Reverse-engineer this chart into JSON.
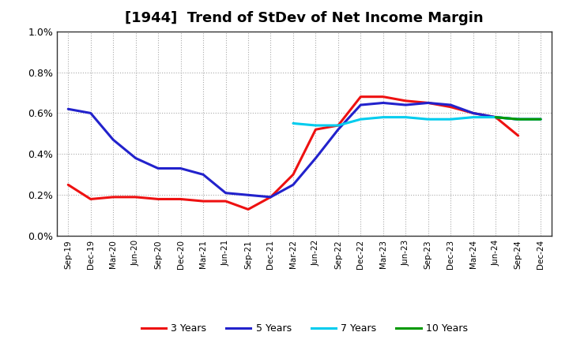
{
  "title": "[1944]  Trend of StDev of Net Income Margin",
  "x_labels": [
    "Sep-19",
    "Dec-19",
    "Mar-20",
    "Jun-20",
    "Sep-20",
    "Dec-20",
    "Mar-21",
    "Jun-21",
    "Sep-21",
    "Dec-21",
    "Mar-22",
    "Jun-22",
    "Sep-22",
    "Dec-22",
    "Mar-23",
    "Jun-23",
    "Sep-23",
    "Dec-23",
    "Mar-24",
    "Jun-24",
    "Sep-24",
    "Dec-24"
  ],
  "series": {
    "3 Years": {
      "color": "#EE1111",
      "values": [
        0.0025,
        0.0018,
        0.0019,
        0.0019,
        0.0018,
        0.0018,
        0.0017,
        0.0017,
        0.0013,
        0.0019,
        0.003,
        0.0052,
        0.0054,
        0.0068,
        0.0068,
        0.0066,
        0.0065,
        0.0063,
        0.006,
        0.0058,
        0.0049,
        null
      ]
    },
    "5 Years": {
      "color": "#2222CC",
      "values": [
        0.0062,
        0.006,
        0.0047,
        0.0038,
        0.0033,
        0.0033,
        0.003,
        0.0021,
        0.002,
        0.0019,
        0.0025,
        0.0038,
        0.0052,
        0.0064,
        0.0065,
        0.0064,
        0.0065,
        0.0064,
        0.006,
        0.0058,
        0.0057,
        0.0057
      ]
    },
    "7 Years": {
      "color": "#00CCEE",
      "values": [
        null,
        null,
        null,
        null,
        null,
        null,
        null,
        null,
        null,
        null,
        0.0055,
        0.0054,
        0.0054,
        0.0057,
        0.0058,
        0.0058,
        0.0057,
        0.0057,
        0.0058,
        0.0058,
        0.0057,
        0.0057
      ]
    },
    "10 Years": {
      "color": "#009900",
      "values": [
        null,
        null,
        null,
        null,
        null,
        null,
        null,
        null,
        null,
        null,
        null,
        null,
        null,
        null,
        null,
        null,
        null,
        null,
        null,
        0.0058,
        0.0057,
        0.0057
      ]
    }
  },
  "ylim": [
    0.0,
    0.01
  ],
  "yticks": [
    0.0,
    0.002,
    0.004,
    0.006,
    0.008,
    0.01
  ],
  "ytick_labels": [
    "0.0%",
    "0.2%",
    "0.4%",
    "0.6%",
    "0.8%",
    "1.0%"
  ],
  "background_color": "#FFFFFF",
  "plot_bg_color": "#FFFFFF",
  "grid_color": "#AAAAAA",
  "title_fontsize": 13,
  "legend_labels": [
    "3 Years",
    "5 Years",
    "7 Years",
    "10 Years"
  ],
  "legend_colors": [
    "#EE1111",
    "#2222CC",
    "#00CCEE",
    "#009900"
  ]
}
